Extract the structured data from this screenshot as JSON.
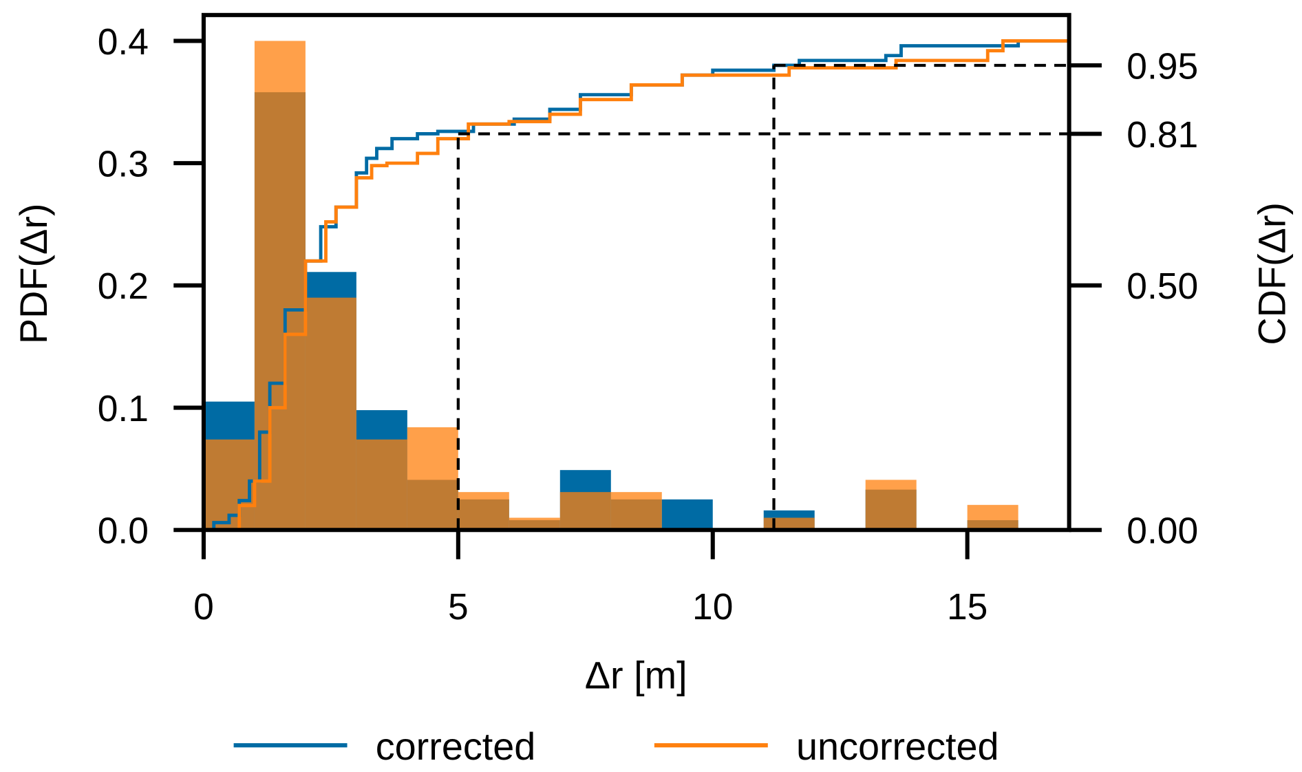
{
  "chart_data": {
    "type": "bar",
    "title": "",
    "xlabel": "Δr [m]",
    "ylabel": "PDF(Δr)",
    "y2label": "CDF(Δr)",
    "xlim": [
      0,
      17
    ],
    "ylim": [
      0,
      0.4
    ],
    "y2lim": [
      0,
      1
    ],
    "xticks": [
      "0",
      "5",
      "10",
      "15"
    ],
    "xtick_values": [
      0,
      5,
      10,
      15
    ],
    "yticks": [
      "0.0",
      "0.1",
      "0.2",
      "0.3",
      "0.4"
    ],
    "ytick_values": [
      0,
      0.1,
      0.2,
      0.3,
      0.4
    ],
    "y2ticks": [
      "0.00",
      "0.50",
      "0.81",
      "0.95"
    ],
    "y2tick_values": [
      0,
      0.5,
      0.81,
      0.95
    ],
    "bin_edges": [
      0,
      1,
      2,
      3,
      4,
      5,
      6,
      7,
      8,
      9,
      10,
      11,
      12,
      13,
      14,
      15,
      16
    ],
    "series": [
      {
        "name": "corrected",
        "color": "#006ba4",
        "hist": [
          0.105,
          0.358,
          0.211,
          0.098,
          0.041,
          0.025,
          0.008,
          0.049,
          0.025,
          0.025,
          0,
          0.016,
          0,
          0.033,
          0,
          0.008
        ],
        "cdf": [
          [
            0.1,
            0
          ],
          [
            0.2,
            0.015
          ],
          [
            0.5,
            0.03
          ],
          [
            0.7,
            0.06
          ],
          [
            0.9,
            0.1
          ],
          [
            1.1,
            0.2
          ],
          [
            1.3,
            0.3
          ],
          [
            1.6,
            0.45
          ],
          [
            2.0,
            0.55
          ],
          [
            2.3,
            0.62
          ],
          [
            2.6,
            0.66
          ],
          [
            3.0,
            0.73
          ],
          [
            3.2,
            0.76
          ],
          [
            3.4,
            0.78
          ],
          [
            3.7,
            0.8
          ],
          [
            4.2,
            0.81
          ],
          [
            4.6,
            0.815
          ],
          [
            5.3,
            0.83
          ],
          [
            6.1,
            0.84
          ],
          [
            6.8,
            0.86
          ],
          [
            7.4,
            0.89
          ],
          [
            8.4,
            0.91
          ],
          [
            9.4,
            0.93
          ],
          [
            10.0,
            0.94
          ],
          [
            11.2,
            0.95
          ],
          [
            11.7,
            0.96
          ],
          [
            13.4,
            0.97
          ],
          [
            13.7,
            0.99
          ],
          [
            16.0,
            1.0
          ],
          [
            17.0,
            1.0
          ]
        ]
      },
      {
        "name": "uncorrected",
        "color": "#ff800e",
        "hist": [
          0.074,
          0.4,
          0.19,
          0.074,
          0.084,
          0.031,
          0.01,
          0.031,
          0.031,
          0,
          0,
          0.01,
          0,
          0.041,
          0,
          0.0205
        ],
        "cdf": [
          [
            0.6,
            0
          ],
          [
            0.7,
            0.05
          ],
          [
            1.0,
            0.1
          ],
          [
            1.3,
            0.25
          ],
          [
            1.6,
            0.4
          ],
          [
            2.0,
            0.55
          ],
          [
            2.4,
            0.63
          ],
          [
            2.6,
            0.66
          ],
          [
            3.0,
            0.72
          ],
          [
            3.3,
            0.745
          ],
          [
            3.6,
            0.75
          ],
          [
            4.2,
            0.77
          ],
          [
            4.6,
            0.8
          ],
          [
            5.2,
            0.83
          ],
          [
            6.0,
            0.835
          ],
          [
            6.8,
            0.85
          ],
          [
            7.4,
            0.88
          ],
          [
            8.4,
            0.91
          ],
          [
            9.4,
            0.93
          ],
          [
            11.3,
            0.93
          ],
          [
            11.5,
            0.945
          ],
          [
            13.3,
            0.945
          ],
          [
            13.6,
            0.96
          ],
          [
            15.4,
            0.98
          ],
          [
            15.7,
            1.0
          ],
          [
            17.0,
            1.0
          ]
        ]
      }
    ],
    "reference_lines": [
      {
        "x": 5.0,
        "cdf": 0.81
      },
      {
        "x": 11.2,
        "cdf": 0.95
      }
    ],
    "legend": {
      "placement": "bottom-center",
      "entries": [
        "corrected",
        "uncorrected"
      ]
    }
  }
}
